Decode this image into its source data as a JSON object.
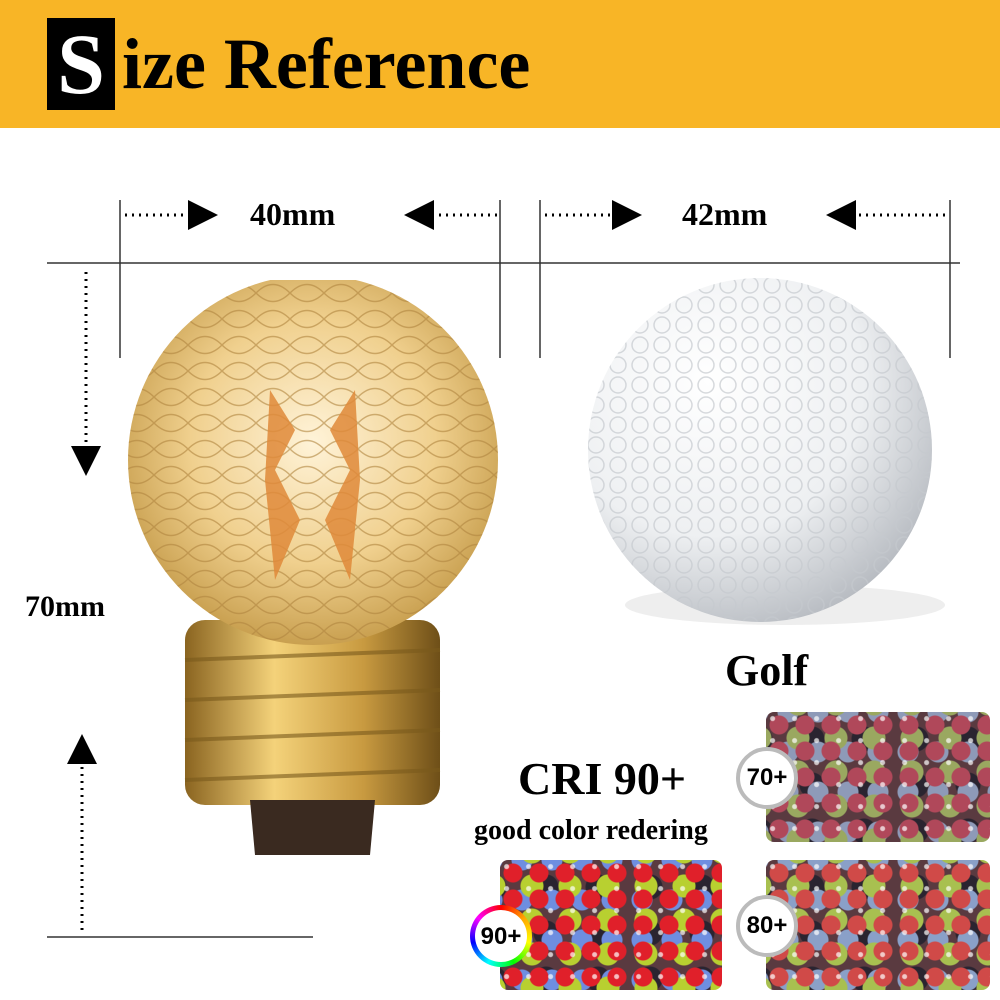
{
  "header": {
    "title_initial": "S",
    "title_rest": "ize Reference",
    "background": "#f8b526"
  },
  "dimensions": {
    "bulb_width": "40mm",
    "ball_width": "42mm",
    "bulb_height": "70mm"
  },
  "golf_label": "Golf",
  "cri": {
    "title": "CRI 90+",
    "subtitle": "good color redering",
    "samples": [
      {
        "label": "70+"
      },
      {
        "label": "90+"
      },
      {
        "label": "80+"
      }
    ]
  }
}
